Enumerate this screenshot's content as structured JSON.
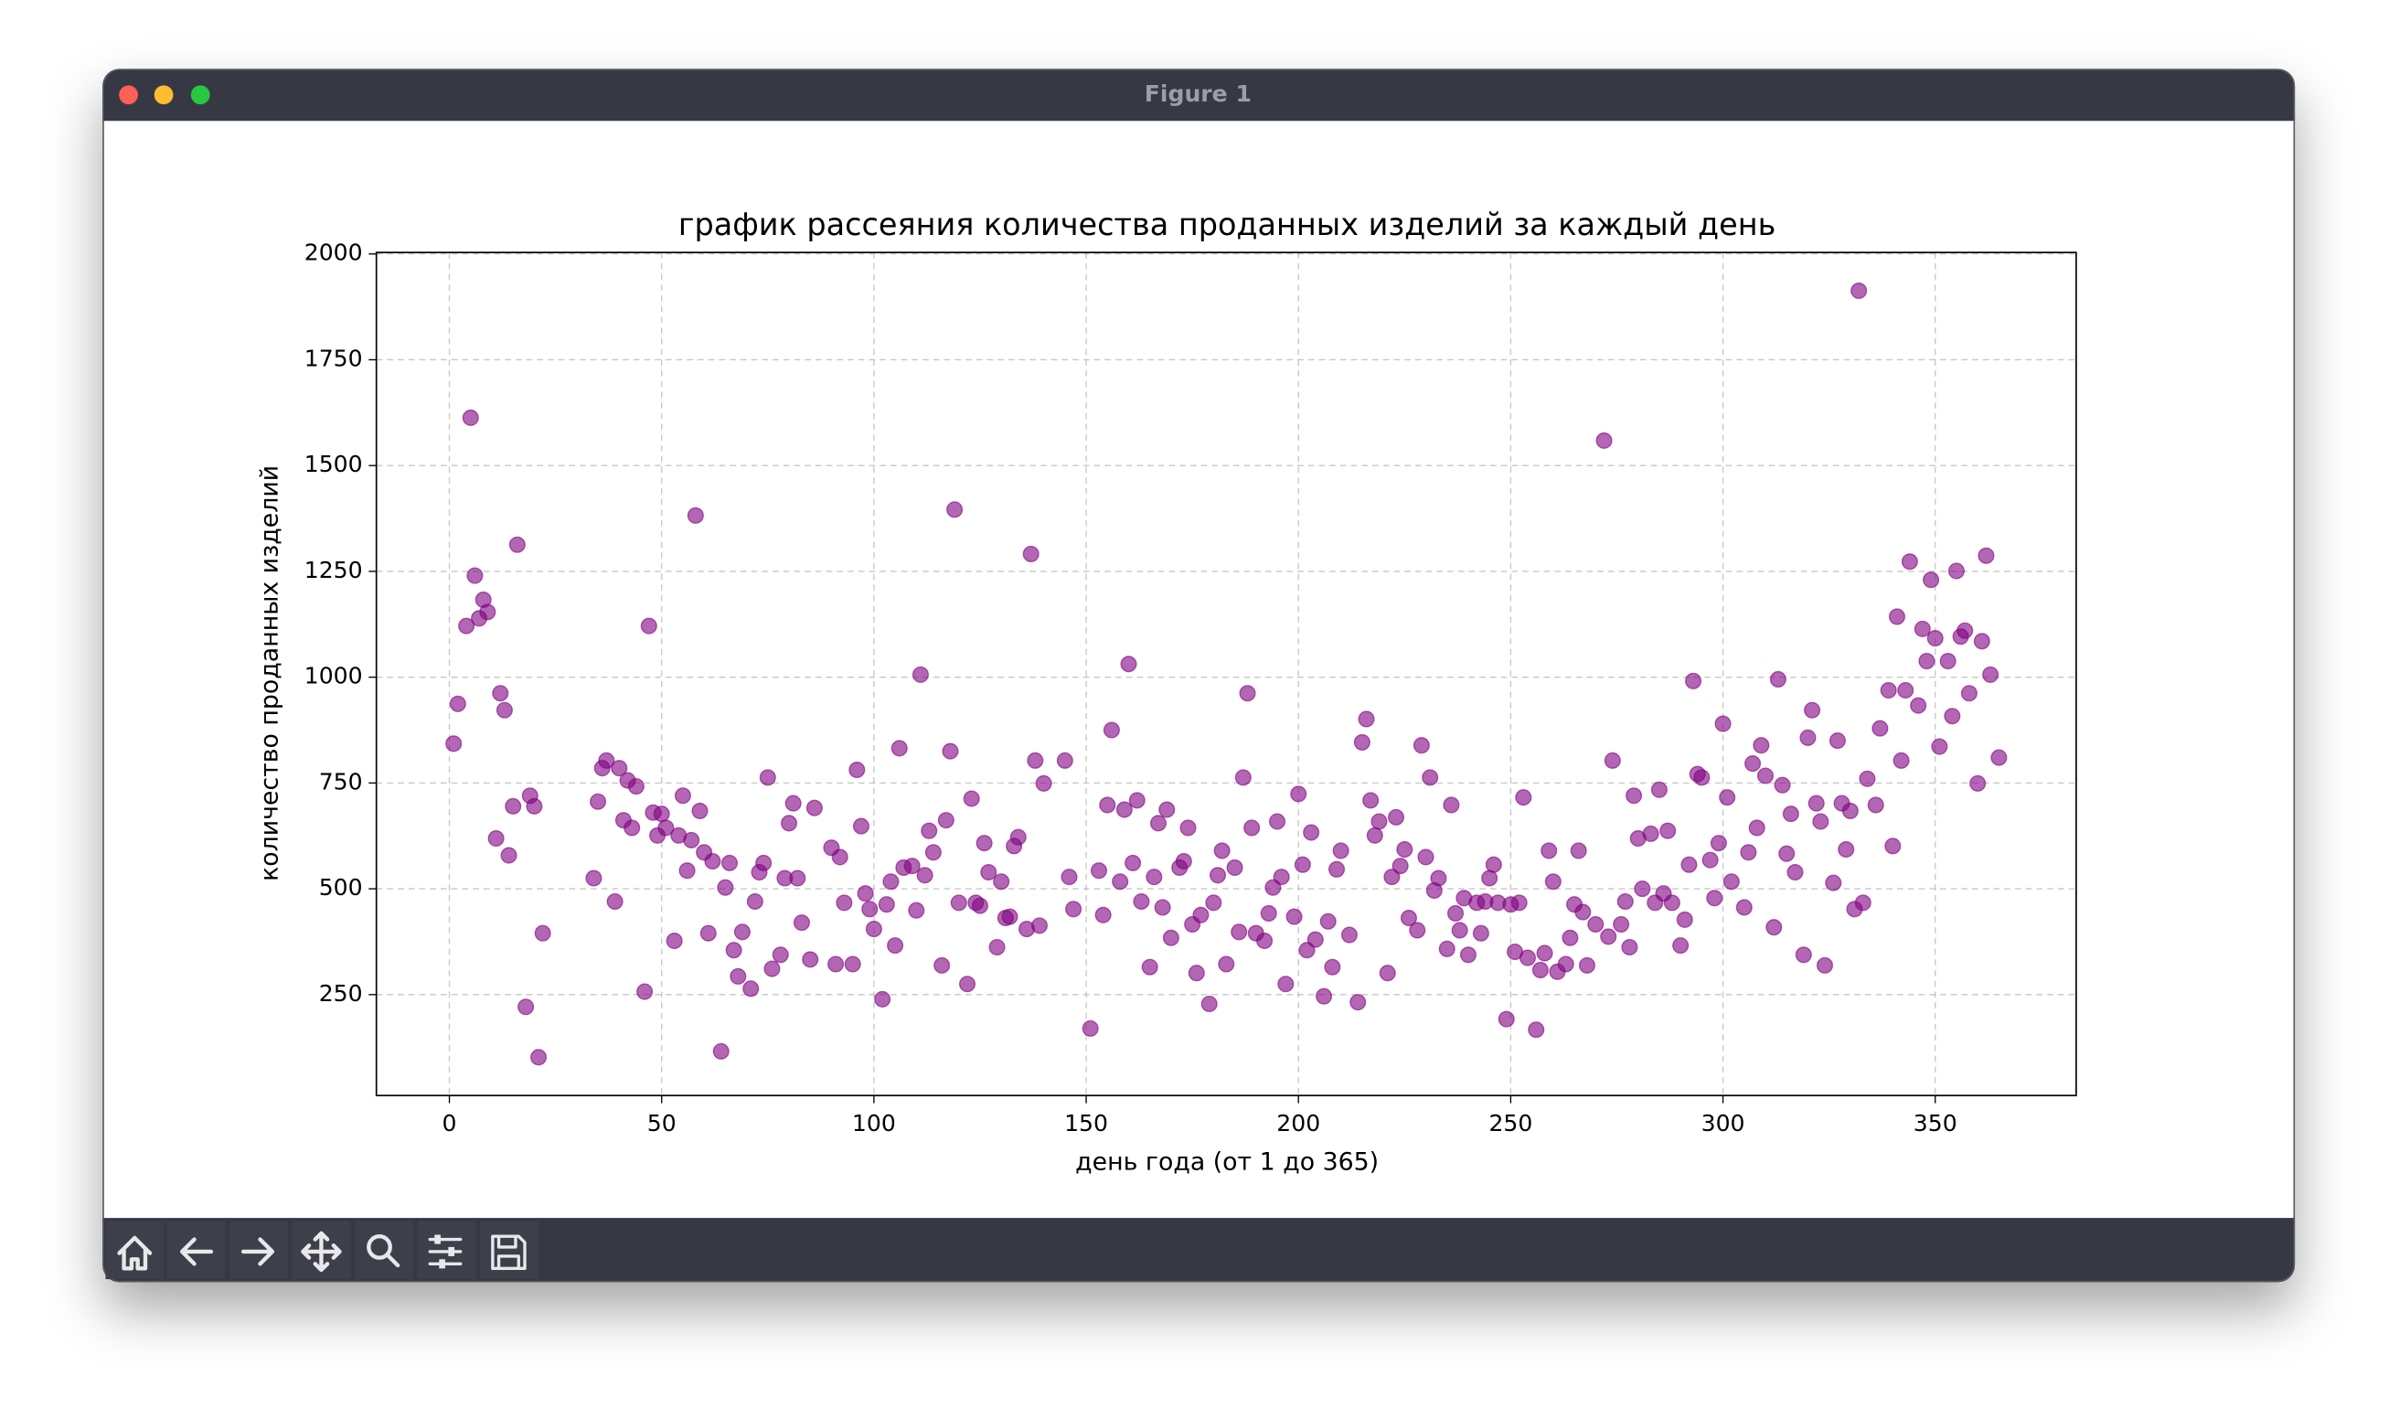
{
  "window": {
    "title": "Figure 1"
  },
  "chart_data": {
    "type": "scatter",
    "title": "график рассеяния количества проданных изделий за каждый день",
    "xlabel": "день года (от 1 до 365)",
    "ylabel": "количество проданных изделий",
    "color": "#800080",
    "alpha": 0.6,
    "grid": true,
    "xlim": [
      -17.2,
      383.2
    ],
    "ylim": [
      11.5,
      2003.5
    ],
    "xticks": [
      0,
      50,
      100,
      150,
      200,
      250,
      300,
      350
    ],
    "yticks": [
      250,
      500,
      750,
      1000,
      1250,
      1500,
      1750,
      2000
    ],
    "x": [
      1,
      2,
      4,
      5,
      6,
      7,
      8,
      9,
      11,
      12,
      13,
      14,
      15,
      16,
      18,
      19,
      20,
      21,
      22,
      34,
      35,
      36,
      37,
      39,
      40,
      41,
      42,
      43,
      44,
      46,
      47,
      48,
      49,
      50,
      51,
      53,
      54,
      55,
      56,
      57,
      58,
      59,
      60,
      61,
      62,
      64,
      65,
      66,
      67,
      68,
      69,
      71,
      72,
      73,
      74,
      75,
      76,
      78,
      79,
      80,
      81,
      82,
      83,
      85,
      86,
      90,
      91,
      92,
      93,
      95,
      96,
      97,
      98,
      99,
      100,
      102,
      103,
      104,
      105,
      106,
      107,
      109,
      110,
      111,
      112,
      113,
      114,
      116,
      117,
      118,
      119,
      120,
      122,
      123,
      124,
      125,
      126,
      127,
      129,
      130,
      131,
      132,
      133,
      134,
      136,
      137,
      138,
      139,
      140,
      145,
      146,
      147,
      151,
      153,
      154,
      155,
      156,
      158,
      159,
      160,
      161,
      162,
      163,
      165,
      166,
      167,
      168,
      169,
      170,
      172,
      173,
      174,
      175,
      176,
      177,
      179,
      180,
      181,
      182,
      183,
      185,
      186,
      187,
      188,
      189,
      190,
      192,
      193,
      194,
      195,
      196,
      197,
      199,
      200,
      201,
      202,
      203,
      204,
      206,
      207,
      208,
      209,
      210,
      212,
      214,
      215,
      216,
      217,
      218,
      219,
      221,
      222,
      223,
      224,
      225,
      226,
      228,
      229,
      230,
      231,
      232,
      233,
      235,
      236,
      237,
      238,
      239,
      240,
      242,
      243,
      244,
      245,
      246,
      247,
      249,
      250,
      251,
      252,
      253,
      254,
      256,
      257,
      258,
      259,
      260,
      261,
      263,
      264,
      265,
      266,
      267,
      268,
      270,
      272,
      273,
      274,
      276,
      277,
      278,
      279,
      280,
      281,
      283,
      284,
      285,
      286,
      287,
      288,
      290,
      291,
      292,
      293,
      294,
      295,
      297,
      298,
      299,
      300,
      301,
      302,
      305,
      306,
      307,
      308,
      309,
      310,
      312,
      313,
      314,
      315,
      316,
      317,
      319,
      320,
      321,
      322,
      323,
      324,
      326,
      327,
      328,
      329,
      330,
      331,
      332,
      333,
      334,
      336,
      337,
      339,
      340,
      341,
      342,
      343,
      344,
      346,
      347,
      348,
      349,
      350,
      351,
      353,
      354,
      355,
      356,
      357,
      358,
      360,
      361,
      362,
      363,
      365
    ],
    "values": [
      843,
      937,
      1121,
      1613,
      1240,
      1139,
      1183,
      1154,
      619,
      962,
      922,
      579,
      695,
      1313,
      221,
      720,
      695,
      102,
      395,
      525,
      706,
      785,
      803,
      470,
      785,
      662,
      756,
      644,
      742,
      257,
      1121,
      680,
      626,
      677,
      644,
      377,
      626,
      720,
      543,
      615,
      1382,
      684,
      586,
      395,
      565,
      116,
      503,
      561,
      355,
      293,
      398,
      264,
      470,
      539,
      561,
      763,
      311,
      344,
      525,
      655,
      702,
      525,
      420,
      333,
      691,
      597,
      322,
      575,
      467,
      322,
      781,
      648,
      489,
      452,
      405,
      239,
      463,
      517,
      366,
      832,
      550,
      554,
      449,
      1006,
      532,
      637,
      586,
      319,
      662,
      825,
      1396,
      467,
      275,
      713,
      467,
      460,
      608,
      539,
      362,
      517,
      431,
      434,
      601,
      622,
      405,
      1291,
      803,
      413,
      749,
      803,
      528,
      452,
      170,
      543,
      438,
      698,
      875,
      517,
      687,
      1031,
      561,
      709,
      470,
      315,
      528,
      655,
      456,
      687,
      384,
      550,
      565,
      644,
      416,
      301,
      438,
      228,
      467,
      532,
      590,
      322,
      550,
      398,
      763,
      962,
      644,
      395,
      377,
      442,
      503,
      659,
      528,
      275,
      434,
      724,
      557,
      355,
      633,
      380,
      246,
      423,
      315,
      546,
      590,
      391,
      232,
      846,
      901,
      709,
      626,
      659,
      301,
      528,
      669,
      554,
      593,
      431,
      402,
      839,
      575,
      763,
      496,
      525,
      358,
      698,
      442,
      402,
      478,
      344,
      467,
      395,
      470,
      525,
      557,
      467,
      192,
      463,
      351,
      467,
      716,
      337,
      167,
      308,
      348,
      590,
      517,
      304,
      322,
      384,
      463,
      590,
      445,
      319,
      416,
      1559,
      387,
      803,
      416,
      470,
      362,
      720,
      619,
      500,
      630,
      467,
      734,
      489,
      637,
      467,
      366,
      427,
      557,
      991,
      771,
      763,
      568,
      478,
      608,
      890,
      716,
      517,
      456,
      586,
      796,
      644,
      839,
      767,
      409,
      995,
      745,
      583,
      677,
      539,
      344,
      857,
      922,
      702,
      659,
      319,
      514,
      850,
      702,
      593,
      684,
      452,
      1913,
      467,
      760,
      698,
      879,
      969,
      601,
      1143,
      803,
      969,
      1273,
      933,
      1114,
      1038,
      1230,
      1092,
      836,
      1038,
      908,
      1251,
      1096,
      1110,
      962,
      749,
      1085,
      1287,
      1006,
      810
    ]
  }
}
